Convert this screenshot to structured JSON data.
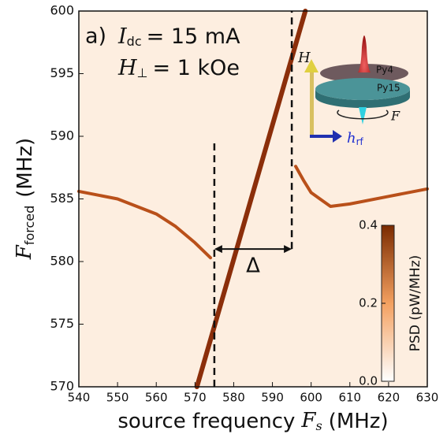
{
  "chart_data": {
    "type": "line",
    "panel": "a)",
    "annotations": [
      {
        "symbol": "I",
        "sub": "dc",
        "text": "= 15 mA"
      },
      {
        "symbol": "H",
        "sub": "⊥",
        "text": "= 1 kOe"
      }
    ],
    "xlabel": {
      "text": "source frequency",
      "symbol": "F",
      "sub": "s",
      "unit": "(MHz)"
    },
    "ylabel": {
      "symbol": "F",
      "sub": "forced",
      "unit": "(MHz)"
    },
    "xlim": [
      540,
      630
    ],
    "xticks": [
      540,
      550,
      560,
      570,
      580,
      590,
      600,
      610,
      620,
      630
    ],
    "ylim": [
      570,
      600
    ],
    "yticks": [
      570,
      575,
      580,
      585,
      590,
      595,
      600
    ],
    "background": "#fdeee0",
    "series": [
      {
        "color": "#8b2e0a",
        "x": [
          570.5,
          598.5
        ],
        "values": [
          570,
          600
        ]
      },
      {
        "color": "#b9501a",
        "x": [
          540,
          550,
          560,
          565,
          570,
          574
        ],
        "values": [
          585.6,
          585.0,
          583.8,
          582.8,
          581.5,
          580.3
        ]
      },
      {
        "color": "#b9501a",
        "x": [
          596,
          598,
          600,
          605,
          610,
          620,
          630
        ],
        "values": [
          587.6,
          586.5,
          585.5,
          584.4,
          584.6,
          585.2,
          585.8
        ]
      }
    ],
    "vlines": [
      {
        "x": 575,
        "ymin": 570,
        "ymax": 589.5
      },
      {
        "x": 595,
        "ymin": 581,
        "ymax": 600
      }
    ],
    "span": {
      "x1": 575,
      "x2": 595,
      "y": 581,
      "label": "Δ"
    },
    "colorbar": {
      "label": "PSD (pW/MHz)",
      "clim": [
        0,
        0.4
      ],
      "ticks": [
        {
          "value": 0,
          "label": "0.0"
        },
        0.2,
        0.4
      ],
      "colors": [
        "#ffffff",
        "#f3a060",
        "#7a2a00"
      ]
    },
    "inset": {
      "top": "Py4",
      "bottom": "Py15",
      "field": "H",
      "rf": {
        "symbol": "h",
        "sub": "rf"
      },
      "rotation": "F"
    }
  }
}
